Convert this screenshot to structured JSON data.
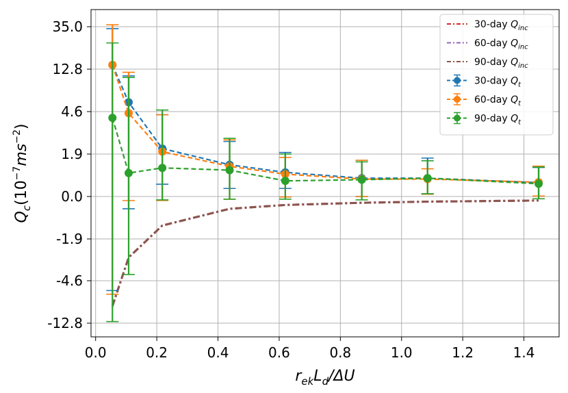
{
  "chart_data": {
    "type": "line",
    "xlabel": "r_ek L_d/ΔU",
    "ylabel": "Q_c(10^-7 ms^-2)",
    "xlim": [
      -0.015,
      1.515
    ],
    "x_ticks": [
      "0.0",
      "0.2",
      "0.4",
      "0.6",
      "0.8",
      "1.0",
      "1.2",
      "1.4"
    ],
    "x_tick_values": [
      0.0,
      0.2,
      0.4,
      0.6,
      0.8,
      1.0,
      1.2,
      1.4
    ],
    "y_scale": "symlog-like (labeled ticks evenly spaced)",
    "y_ticks": [
      "35.0",
      "12.8",
      "4.6",
      "1.9",
      "0.0",
      "-1.9",
      "-4.6",
      "-12.8"
    ],
    "y_tick_values": [
      35.0,
      12.8,
      4.6,
      1.9,
      0.0,
      -1.9,
      -4.6,
      -12.8
    ],
    "grid": true,
    "legend_position": "top-right",
    "x": [
      0.055,
      0.108,
      0.218,
      0.438,
      0.62,
      0.87,
      1.085,
      1.448
    ],
    "series": [
      {
        "name": "30-day Q_inc",
        "style": "dash-dot",
        "color": "#d62728",
        "values": [
          -9.5,
          -3.1,
          -1.3,
          -0.55,
          -0.38,
          -0.28,
          -0.23,
          -0.18
        ]
      },
      {
        "name": "60-day Q_inc",
        "style": "dash-dot",
        "color": "#9467bd",
        "values": [
          -9.5,
          -3.1,
          -1.3,
          -0.55,
          -0.38,
          -0.28,
          -0.23,
          -0.18
        ]
      },
      {
        "name": "90-day Q_inc",
        "style": "dash-dot",
        "color": "#8c564b",
        "values": [
          -9.5,
          -3.1,
          -1.3,
          -0.55,
          -0.38,
          -0.28,
          -0.23,
          -0.18
        ]
      },
      {
        "name": "30-day Q_t",
        "style": "dashed-marker-errorbar",
        "color": "#1f77b4",
        "values": [
          15.0,
          6.4,
          2.25,
          1.42,
          1.08,
          0.82,
          0.82,
          0.62
        ],
        "err_low": [
          -6.5,
          -0.55,
          0.55,
          0.36,
          0.36,
          0.0,
          0.12,
          0.02
        ],
        "err_high": [
          34.0,
          11.5,
          4.4,
          2.7,
          2.0,
          1.62,
          1.72,
          1.3
        ]
      },
      {
        "name": "60-day Q_t",
        "style": "dashed-marker-errorbar",
        "color": "#ff7f0e",
        "values": [
          15.0,
          4.5,
          2.05,
          1.35,
          1.0,
          0.78,
          0.78,
          0.64
        ],
        "err_low": [
          -7.2,
          -0.18,
          -0.18,
          -0.12,
          -0.02,
          0.0,
          0.1,
          0.02
        ],
        "err_high": [
          36.0,
          12.2,
          4.4,
          2.8,
          1.75,
          1.62,
          1.24,
          1.36
        ]
      },
      {
        "name": "90-day Q_t",
        "style": "dashed-marker-errorbar",
        "color": "#2ca02c",
        "values": [
          4.2,
          1.05,
          1.28,
          1.18,
          0.7,
          0.75,
          0.82,
          0.57
        ],
        "err_low": [
          -12.5,
          -4.2,
          -0.15,
          -0.12,
          -0.12,
          -0.15,
          0.12,
          -0.1
        ],
        "err_high": [
          26.5,
          11.2,
          4.9,
          2.9,
          1.9,
          1.55,
          1.6,
          1.32
        ]
      }
    ],
    "legend": {
      "entries": [
        "30-day Q_inc",
        "60-day Q_inc",
        "90-day Q_inc",
        "30-day Q_t",
        "60-day Q_t",
        "90-day Q_t"
      ]
    }
  }
}
